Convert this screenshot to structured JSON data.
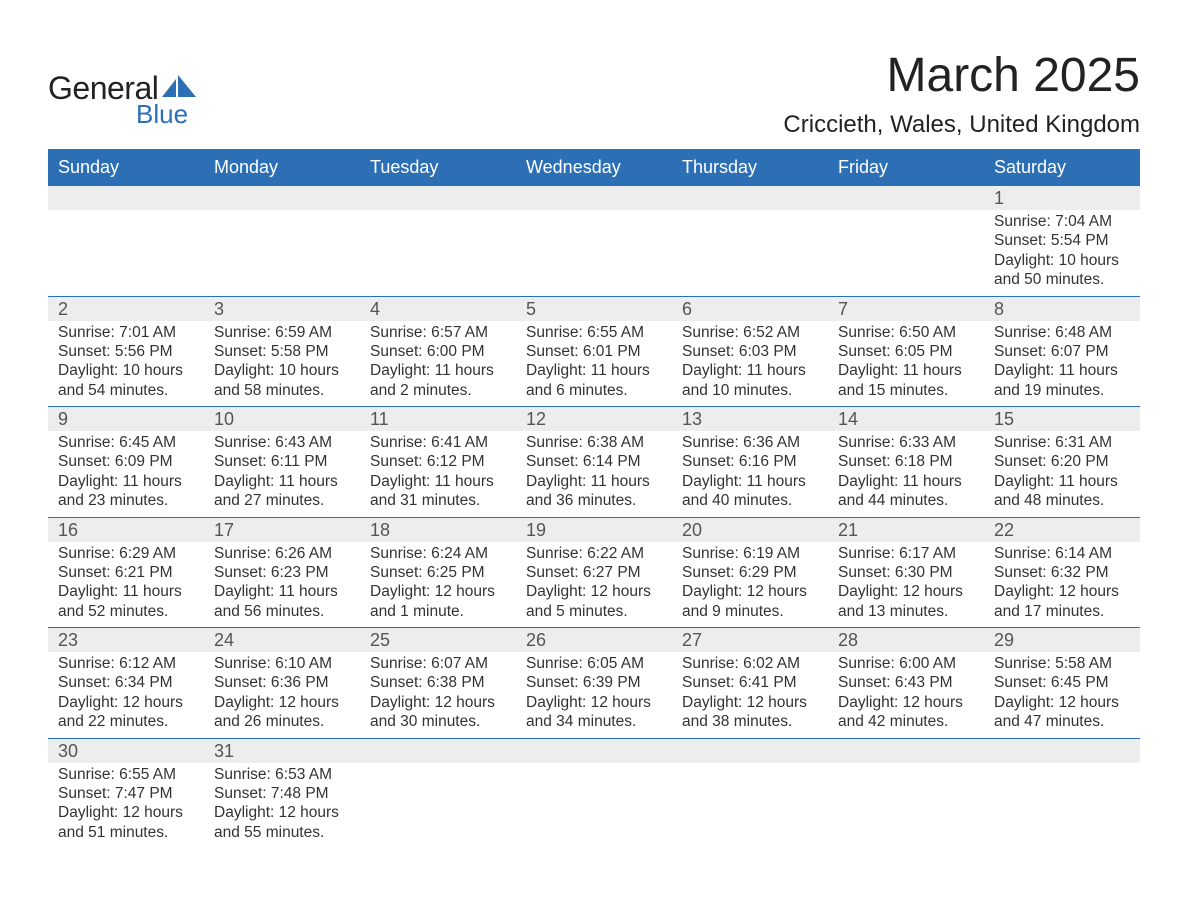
{
  "brand": {
    "main": "General",
    "sub": "Blue",
    "accent": "#2d6fb5"
  },
  "title": "March 2025",
  "location": "Criccieth, Wales, United Kingdom",
  "weekdays": [
    "Sunday",
    "Monday",
    "Tuesday",
    "Wednesday",
    "Thursday",
    "Friday",
    "Saturday"
  ],
  "colors": {
    "header_bg": "#2d6fb5",
    "header_text": "#ffffff",
    "daynum_bg": "#ededed",
    "body_text": "#333333",
    "rule": "#2d6fb5",
    "page_bg": "#ffffff"
  },
  "weeks": [
    [
      null,
      null,
      null,
      null,
      null,
      null,
      {
        "n": "1",
        "sunrise": "7:04 AM",
        "sunset": "5:54 PM",
        "daylight": "10 hours and 50 minutes."
      }
    ],
    [
      {
        "n": "2",
        "sunrise": "7:01 AM",
        "sunset": "5:56 PM",
        "daylight": "10 hours and 54 minutes."
      },
      {
        "n": "3",
        "sunrise": "6:59 AM",
        "sunset": "5:58 PM",
        "daylight": "10 hours and 58 minutes."
      },
      {
        "n": "4",
        "sunrise": "6:57 AM",
        "sunset": "6:00 PM",
        "daylight": "11 hours and 2 minutes."
      },
      {
        "n": "5",
        "sunrise": "6:55 AM",
        "sunset": "6:01 PM",
        "daylight": "11 hours and 6 minutes."
      },
      {
        "n": "6",
        "sunrise": "6:52 AM",
        "sunset": "6:03 PM",
        "daylight": "11 hours and 10 minutes."
      },
      {
        "n": "7",
        "sunrise": "6:50 AM",
        "sunset": "6:05 PM",
        "daylight": "11 hours and 15 minutes."
      },
      {
        "n": "8",
        "sunrise": "6:48 AM",
        "sunset": "6:07 PM",
        "daylight": "11 hours and 19 minutes."
      }
    ],
    [
      {
        "n": "9",
        "sunrise": "6:45 AM",
        "sunset": "6:09 PM",
        "daylight": "11 hours and 23 minutes."
      },
      {
        "n": "10",
        "sunrise": "6:43 AM",
        "sunset": "6:11 PM",
        "daylight": "11 hours and 27 minutes."
      },
      {
        "n": "11",
        "sunrise": "6:41 AM",
        "sunset": "6:12 PM",
        "daylight": "11 hours and 31 minutes."
      },
      {
        "n": "12",
        "sunrise": "6:38 AM",
        "sunset": "6:14 PM",
        "daylight": "11 hours and 36 minutes."
      },
      {
        "n": "13",
        "sunrise": "6:36 AM",
        "sunset": "6:16 PM",
        "daylight": "11 hours and 40 minutes."
      },
      {
        "n": "14",
        "sunrise": "6:33 AM",
        "sunset": "6:18 PM",
        "daylight": "11 hours and 44 minutes."
      },
      {
        "n": "15",
        "sunrise": "6:31 AM",
        "sunset": "6:20 PM",
        "daylight": "11 hours and 48 minutes."
      }
    ],
    [
      {
        "n": "16",
        "sunrise": "6:29 AM",
        "sunset": "6:21 PM",
        "daylight": "11 hours and 52 minutes."
      },
      {
        "n": "17",
        "sunrise": "6:26 AM",
        "sunset": "6:23 PM",
        "daylight": "11 hours and 56 minutes."
      },
      {
        "n": "18",
        "sunrise": "6:24 AM",
        "sunset": "6:25 PM",
        "daylight": "12 hours and 1 minute."
      },
      {
        "n": "19",
        "sunrise": "6:22 AM",
        "sunset": "6:27 PM",
        "daylight": "12 hours and 5 minutes."
      },
      {
        "n": "20",
        "sunrise": "6:19 AM",
        "sunset": "6:29 PM",
        "daylight": "12 hours and 9 minutes."
      },
      {
        "n": "21",
        "sunrise": "6:17 AM",
        "sunset": "6:30 PM",
        "daylight": "12 hours and 13 minutes."
      },
      {
        "n": "22",
        "sunrise": "6:14 AM",
        "sunset": "6:32 PM",
        "daylight": "12 hours and 17 minutes."
      }
    ],
    [
      {
        "n": "23",
        "sunrise": "6:12 AM",
        "sunset": "6:34 PM",
        "daylight": "12 hours and 22 minutes."
      },
      {
        "n": "24",
        "sunrise": "6:10 AM",
        "sunset": "6:36 PM",
        "daylight": "12 hours and 26 minutes."
      },
      {
        "n": "25",
        "sunrise": "6:07 AM",
        "sunset": "6:38 PM",
        "daylight": "12 hours and 30 minutes."
      },
      {
        "n": "26",
        "sunrise": "6:05 AM",
        "sunset": "6:39 PM",
        "daylight": "12 hours and 34 minutes."
      },
      {
        "n": "27",
        "sunrise": "6:02 AM",
        "sunset": "6:41 PM",
        "daylight": "12 hours and 38 minutes."
      },
      {
        "n": "28",
        "sunrise": "6:00 AM",
        "sunset": "6:43 PM",
        "daylight": "12 hours and 42 minutes."
      },
      {
        "n": "29",
        "sunrise": "5:58 AM",
        "sunset": "6:45 PM",
        "daylight": "12 hours and 47 minutes."
      }
    ],
    [
      {
        "n": "30",
        "sunrise": "6:55 AM",
        "sunset": "7:47 PM",
        "daylight": "12 hours and 51 minutes."
      },
      {
        "n": "31",
        "sunrise": "6:53 AM",
        "sunset": "7:48 PM",
        "daylight": "12 hours and 55 minutes."
      },
      null,
      null,
      null,
      null,
      null
    ]
  ],
  "labels": {
    "sunrise": "Sunrise: ",
    "sunset": "Sunset: ",
    "daylight": "Daylight: "
  }
}
